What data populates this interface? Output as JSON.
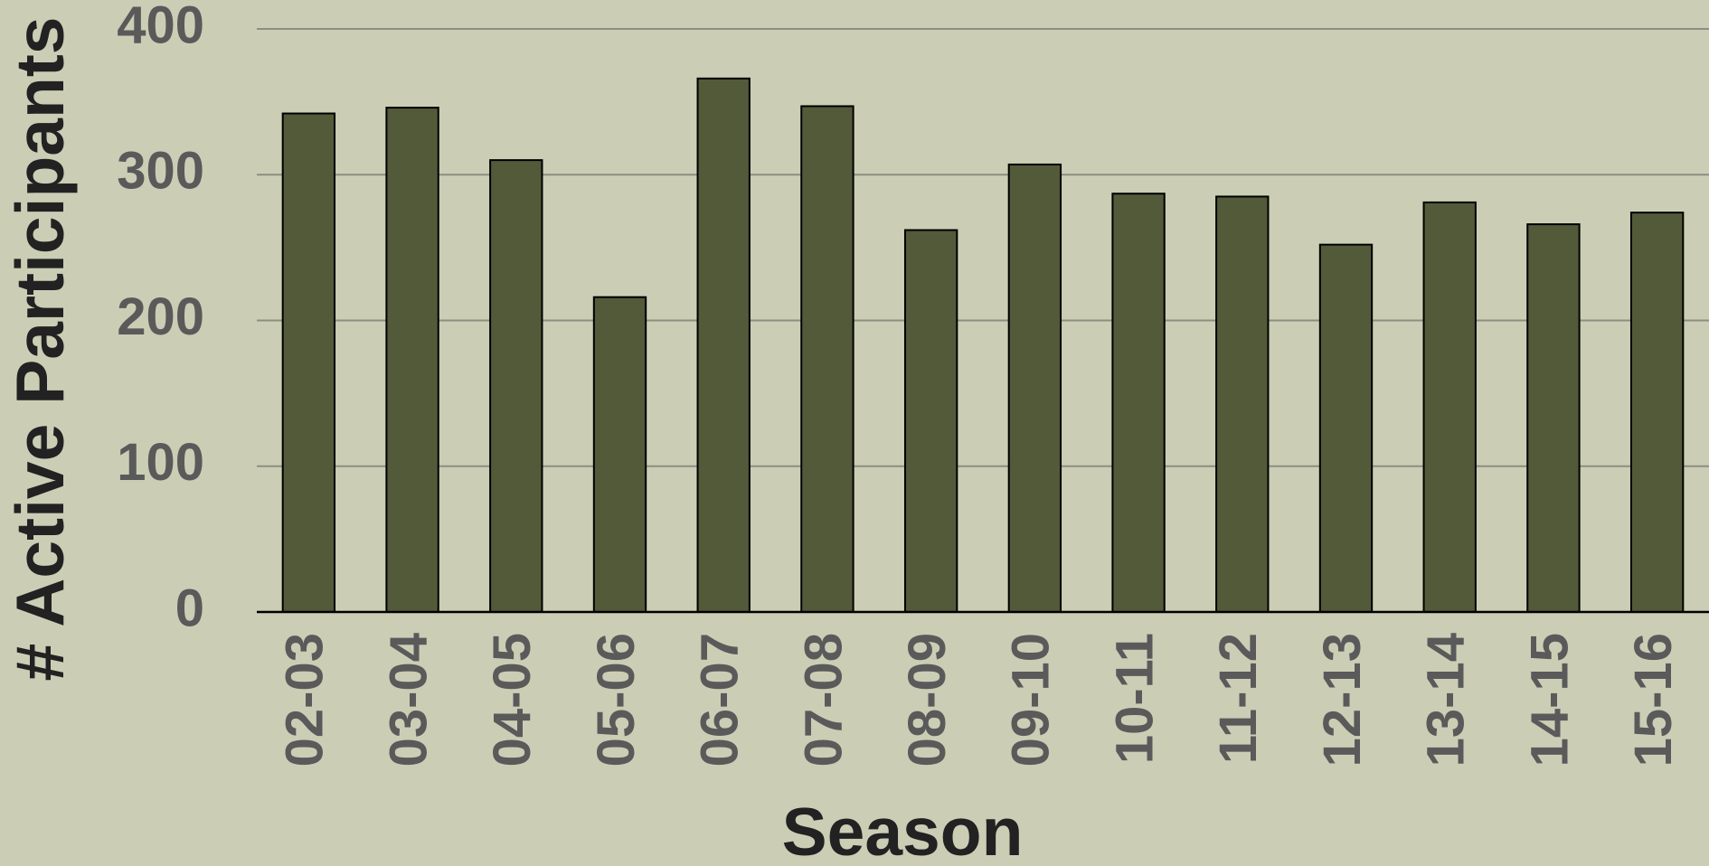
{
  "chart_data": {
    "type": "bar",
    "xlabel": "Season",
    "ylabel": "# Active Participants",
    "categories": [
      "02-03",
      "03-04",
      "04-05",
      "05-06",
      "06-07",
      "07-08",
      "08-09",
      "09-10",
      "10-11",
      "11-12",
      "12-13",
      "13-14",
      "14-15",
      "15-16"
    ],
    "values": [
      342,
      346,
      310,
      216,
      366,
      347,
      262,
      307,
      287,
      285,
      252,
      281,
      266,
      274
    ],
    "color": "#535a3a",
    "ylim": [
      0,
      400
    ],
    "yticks": [
      0,
      100,
      200,
      300,
      400
    ],
    "grid": true
  }
}
